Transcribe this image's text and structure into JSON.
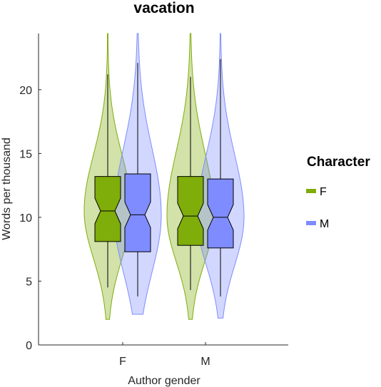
{
  "chart_data": {
    "type": "violin",
    "title": "vacation",
    "xlabel": "Author gender",
    "ylabel": "Words per thousand",
    "categories": [
      "F",
      "M"
    ],
    "ylim": [
      0,
      24.4
    ],
    "yticks": [
      0,
      5,
      10,
      15,
      20
    ],
    "legend": {
      "title": "Character",
      "position": "right"
    },
    "series": [
      {
        "name": "F",
        "color": "#7fad0a",
        "groups": [
          {
            "category": "F",
            "min": 2.0,
            "max": 24.4,
            "q1": 8.1,
            "median": 10.5,
            "q3": 13.2,
            "whisker_low": 4.5,
            "whisker_high": 21.2
          },
          {
            "category": "M",
            "min": 2.0,
            "max": 24.4,
            "q1": 7.8,
            "median": 10.1,
            "q3": 13.2,
            "whisker_low": 4.3,
            "whisker_high": 21.0
          }
        ]
      },
      {
        "name": "M",
        "color": "#7f8cff",
        "groups": [
          {
            "category": "F",
            "min": 2.4,
            "max": 24.4,
            "q1": 7.3,
            "median": 10.2,
            "q3": 13.4,
            "whisker_low": 3.8,
            "whisker_high": 22.1
          },
          {
            "category": "M",
            "min": 2.1,
            "max": 24.4,
            "q1": 7.6,
            "median": 10.0,
            "q3": 13.0,
            "whisker_low": 3.8,
            "whisker_high": 22.4
          }
        ]
      }
    ]
  }
}
